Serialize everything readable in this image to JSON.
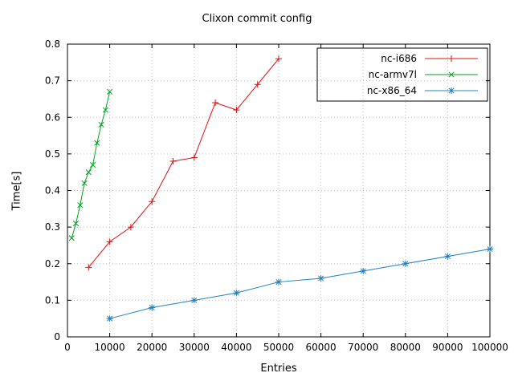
{
  "chart_data": {
    "type": "line",
    "title": "Clixon commit config",
    "xlabel": "Entries",
    "ylabel": "Time[s]",
    "xlim": [
      0,
      100000
    ],
    "ylim": [
      0,
      0.8
    ],
    "xticks": [
      0,
      10000,
      20000,
      30000,
      40000,
      50000,
      60000,
      70000,
      80000,
      90000,
      100000
    ],
    "yticks": [
      0,
      0.1,
      0.2,
      0.3,
      0.4,
      0.5,
      0.6,
      0.7,
      0.8
    ],
    "grid": true,
    "grid_color": "#c0c0c0",
    "legend_position": "top-right",
    "series": [
      {
        "name": "nc-i686",
        "color": "#e01010",
        "marker": "plus",
        "x": [
          5000,
          10000,
          15000,
          20000,
          25000,
          30000,
          35000,
          40000,
          45000,
          50000
        ],
        "y": [
          0.19,
          0.26,
          0.3,
          0.37,
          0.48,
          0.49,
          0.64,
          0.62,
          0.69,
          0.76
        ]
      },
      {
        "name": "nc-armv7l",
        "color": "#00a020",
        "marker": "cross",
        "x": [
          1000,
          2000,
          3000,
          4000,
          5000,
          6000,
          7000,
          8000,
          9000,
          10000
        ],
        "y": [
          0.27,
          0.31,
          0.36,
          0.42,
          0.45,
          0.47,
          0.53,
          0.58,
          0.62,
          0.67
        ]
      },
      {
        "name": "nc-x86_64",
        "color": "#2080c0",
        "marker": "asterisk",
        "x": [
          10000,
          20000,
          30000,
          40000,
          50000,
          60000,
          70000,
          80000,
          90000,
          100000
        ],
        "y": [
          0.05,
          0.08,
          0.1,
          0.12,
          0.15,
          0.16,
          0.18,
          0.2,
          0.22,
          0.24
        ]
      }
    ]
  }
}
